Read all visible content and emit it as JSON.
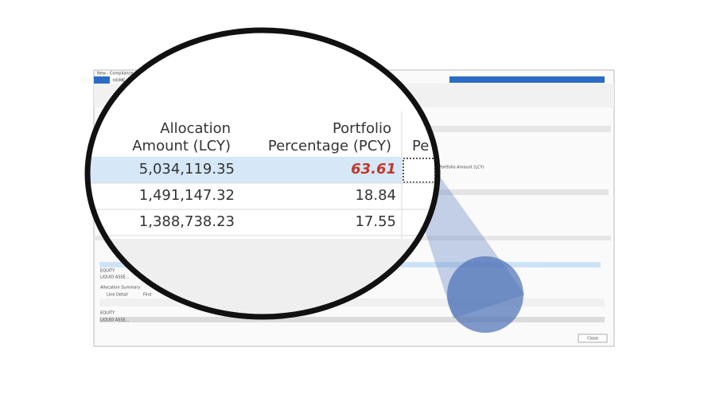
{
  "window": {
    "title": "New - Compliance Allocation",
    "tab": "HOME",
    "close": "Close",
    "section": "Allocation Summary",
    "tools": [
      "Line Detail",
      "Find"
    ],
    "background_header": "Portfolio Amount (LCY)",
    "rows": [
      "EQUITY",
      "LIQUID ASSE..."
    ]
  },
  "magnified": {
    "headers": [
      {
        "line1": "Allocation",
        "line2": "Amount (LCY)"
      },
      {
        "line1": "Portfolio",
        "line2": "Percentage (PCY)"
      },
      {
        "line1": "",
        "line2": "Pe"
      }
    ],
    "rows": [
      [
        "5,034,119.35",
        "63.61"
      ],
      [
        "1,491,147.32",
        "18.84"
      ],
      [
        "1,388,738.23",
        "17.55"
      ]
    ]
  }
}
